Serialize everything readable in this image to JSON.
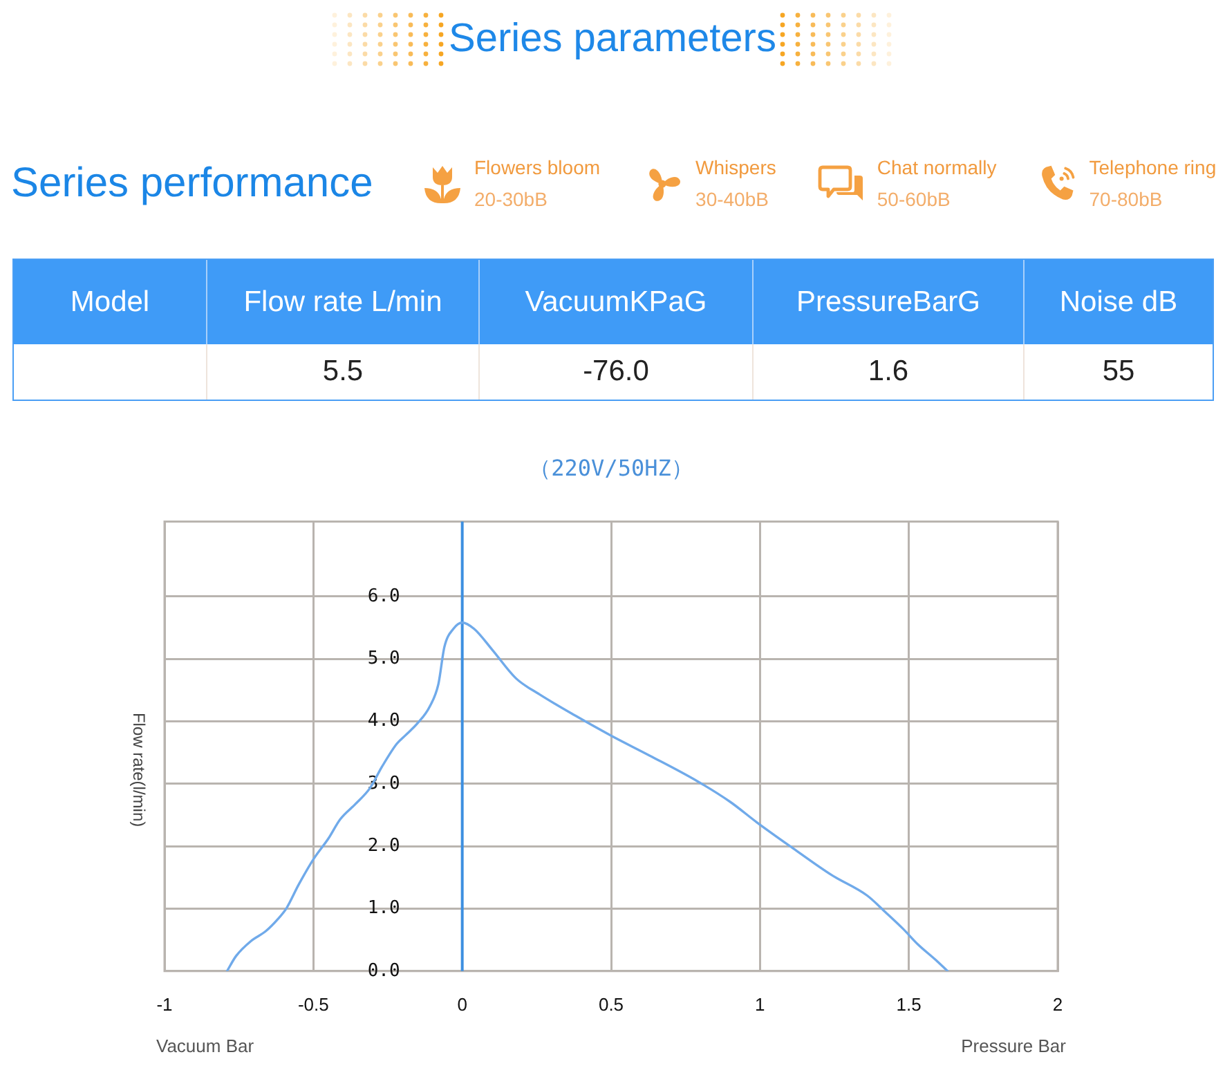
{
  "chart_data": [
    {
      "type": "other",
      "title": "Series parameters",
      "subtitle": "Series performance",
      "annotations": [
        "Flowers bloom",
        "20-30bB",
        "Whispers",
        "30-40bB",
        "Chat normally",
        "50-60bB",
        "Telephone ring",
        "70-80bB"
      ],
      "categories": [
        "Model",
        "Flow rate L/min",
        "VacuumKPaG",
        "PressureBarG",
        "Noise dB"
      ],
      "values": [
        null,
        5.5,
        -76.0,
        1.6,
        55
      ],
      "value_labels": [
        null,
        "5.5",
        "-76.0",
        "1.6",
        "55"
      ]
    },
    {
      "type": "line",
      "title": "（220V/50HZ）",
      "ylabel": "Flow rate(l/min)",
      "annotations": [
        "Vacuum Bar",
        "Pressure Bar"
      ],
      "series": [
        {
          "color": "#70aaea",
          "x": [
            -0.79,
            -0.76,
            -0.71,
            -0.66,
            -0.62,
            -0.59,
            -0.55,
            -0.5,
            -0.45,
            -0.41,
            -0.36,
            -0.31,
            -0.27,
            -0.22,
            -0.19,
            -0.15,
            -0.11,
            -0.08,
            -0.06,
            -0.03,
            0,
            0.04,
            0.1,
            0.18,
            0.26,
            0.38,
            0.5,
            0.63,
            0.79,
            0.9,
            0.99,
            1.11,
            1.24,
            1.36,
            1.42,
            1.48,
            1.53,
            1.59,
            1.63
          ],
          "values": [
            0,
            0.24,
            0.48,
            0.64,
            0.83,
            1.01,
            1.38,
            1.79,
            2.12,
            2.43,
            2.67,
            2.93,
            3.27,
            3.64,
            3.78,
            3.97,
            4.23,
            4.6,
            5.19,
            5.48,
            5.58,
            5.48,
            5.15,
            4.69,
            4.43,
            4.09,
            3.77,
            3.45,
            3.04,
            2.71,
            2.38,
            1.97,
            1.54,
            1.21,
            0.95,
            0.68,
            0.43,
            0.18,
            0
          ]
        }
      ],
      "xlim": [
        -1,
        2
      ],
      "xticks": [
        -1,
        -0.5,
        0,
        0.5,
        1,
        1.5,
        2
      ],
      "ylim": [
        0,
        7.2
      ],
      "yticks": [
        {
          "value": 0,
          "label": "0.0"
        },
        {
          "value": 1,
          "label": "1.0"
        },
        {
          "value": 2,
          "label": "2.0"
        },
        {
          "value": 3,
          "label": "3.0"
        },
        {
          "value": 4,
          "label": "4.0"
        },
        {
          "value": 5,
          "label": "5.0"
        },
        {
          "value": 6,
          "label": "6.0"
        }
      ],
      "ref_lines": [
        {
          "axis": "x",
          "value": 0,
          "color": "#3d8fe0"
        }
      ],
      "grid": true,
      "marker": "none"
    }
  ]
}
